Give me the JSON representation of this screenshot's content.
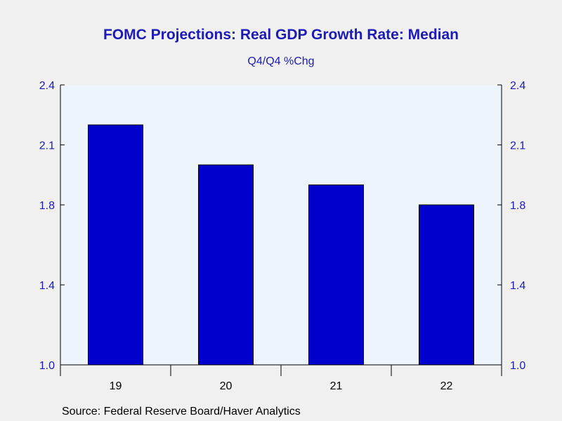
{
  "chart_data": {
    "type": "bar",
    "title": "FOMC Projections: Real GDP Growth Rate: Median",
    "subtitle": "Q4/Q4 %Chg",
    "categories": [
      "19",
      "20",
      "21",
      "22"
    ],
    "values": [
      2.2,
      2.0,
      1.9,
      1.8
    ],
    "ylim": [
      1.0,
      2.4
    ],
    "yticks": [
      1.0,
      1.4,
      1.8,
      2.1,
      2.4
    ],
    "ytick_labels": [
      "1.0",
      "1.4",
      "1.8",
      "2.1",
      "2.4"
    ],
    "grid": false,
    "right_axis": true,
    "colors": {
      "bar": "#0000cc",
      "plot_background": "#eef4fc",
      "text_accent": "#1c1cb4"
    }
  },
  "source": "Source:  Federal Reserve Board/Haver Analytics"
}
